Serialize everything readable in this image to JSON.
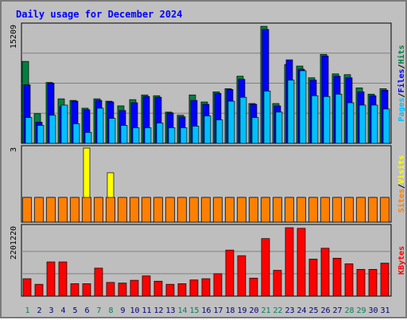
{
  "title": "Daily usage for December 2024",
  "colors": {
    "title": "#0000ff",
    "background": "#c0c0c0",
    "plot_background": "#bebebe",
    "hits": "#008040",
    "files": "#0000ff",
    "pages": "#00c0ff",
    "visits": "#ffff00",
    "sites": "#ff8000",
    "kbytes": "#ff0000",
    "weekday_label": "#000080",
    "weekend_label": "#00805c"
  },
  "chart_data": [
    {
      "type": "bar",
      "name": "traffic",
      "ytick_label": "15209",
      "ymax": 15209,
      "legend": [
        "Pages",
        "/",
        "Files",
        "/",
        "Hits"
      ],
      "categories": [
        "1",
        "2",
        "3",
        "4",
        "5",
        "6",
        "7",
        "8",
        "9",
        "10",
        "11",
        "12",
        "13",
        "14",
        "15",
        "16",
        "17",
        "18",
        "19",
        "20",
        "21",
        "22",
        "23",
        "24",
        "25",
        "26",
        "27",
        "28",
        "29",
        "30",
        "31"
      ],
      "weekend_days": [
        "1",
        "7",
        "8",
        "14",
        "15",
        "21",
        "22",
        "28",
        "29"
      ],
      "series": [
        {
          "name": "Hits",
          "values": [
            10500,
            3800,
            7800,
            5700,
            5500,
            4500,
            5700,
            5400,
            4800,
            5600,
            6200,
            6100,
            4000,
            3600,
            6200,
            5300,
            6600,
            7000,
            8600,
            5100,
            15000,
            5100,
            10100,
            9900,
            8400,
            11400,
            8900,
            8800,
            7100,
            6300,
            7000
          ]
        },
        {
          "name": "Files",
          "values": [
            7500,
            2700,
            7700,
            4700,
            5400,
            4300,
            5500,
            5300,
            4200,
            5200,
            6000,
            5900,
            3900,
            3400,
            5500,
            5000,
            6400,
            6900,
            8200,
            5000,
            14600,
            4800,
            10700,
            9500,
            8100,
            11200,
            8600,
            8400,
            6600,
            6100,
            6800
          ]
        },
        {
          "name": "Pages",
          "values": [
            3300,
            2300,
            3600,
            4900,
            2500,
            1400,
            4500,
            3200,
            2300,
            2000,
            2000,
            2600,
            2000,
            2000,
            2200,
            3500,
            3000,
            5400,
            5900,
            3300,
            6700,
            4000,
            8100,
            9300,
            6100,
            6000,
            6300,
            5200,
            4900,
            4900,
            4400
          ]
        }
      ]
    },
    {
      "type": "bar",
      "name": "visits",
      "ytick_label": "3",
      "ymax": 3,
      "legend": [
        "Sites",
        "/",
        "Visits"
      ],
      "categories": [
        "1",
        "2",
        "3",
        "4",
        "5",
        "6",
        "7",
        "8",
        "9",
        "10",
        "11",
        "12",
        "13",
        "14",
        "15",
        "16",
        "17",
        "18",
        "19",
        "20",
        "21",
        "22",
        "23",
        "24",
        "25",
        "26",
        "27",
        "28",
        "29",
        "30",
        "31"
      ],
      "series": [
        {
          "name": "Visits",
          "values": [
            1,
            1,
            1,
            1,
            1,
            3,
            1,
            2,
            1,
            1,
            1,
            1,
            1,
            1,
            1,
            1,
            1,
            1,
            1,
            1,
            1,
            1,
            1,
            1,
            1,
            1,
            1,
            1,
            1,
            1,
            1
          ]
        },
        {
          "name": "Sites",
          "values": [
            1,
            1,
            1,
            1,
            1,
            1,
            1,
            1,
            1,
            1,
            1,
            1,
            1,
            1,
            1,
            1,
            1,
            1,
            1,
            1,
            1,
            1,
            1,
            1,
            1,
            1,
            1,
            1,
            1,
            1,
            1
          ]
        }
      ]
    },
    {
      "type": "bar",
      "name": "kbytes",
      "ytick_label": "2201220",
      "ymax": 2201220,
      "legend": [
        "KBytes"
      ],
      "categories": [
        "1",
        "2",
        "3",
        "4",
        "5",
        "6",
        "7",
        "8",
        "9",
        "10",
        "11",
        "12",
        "13",
        "14",
        "15",
        "16",
        "17",
        "18",
        "19",
        "20",
        "21",
        "22",
        "23",
        "24",
        "25",
        "26",
        "27",
        "28",
        "29",
        "30",
        "31"
      ],
      "series": [
        {
          "name": "KBytes",
          "values": [
            560000,
            380000,
            1100000,
            1100000,
            400000,
            400000,
            900000,
            440000,
            420000,
            510000,
            650000,
            480000,
            380000,
            400000,
            520000,
            560000,
            720000,
            1480000,
            1300000,
            580000,
            1850000,
            830000,
            2200000,
            2180000,
            1190000,
            1540000,
            1220000,
            1040000,
            860000,
            860000,
            1060000
          ]
        }
      ]
    }
  ]
}
